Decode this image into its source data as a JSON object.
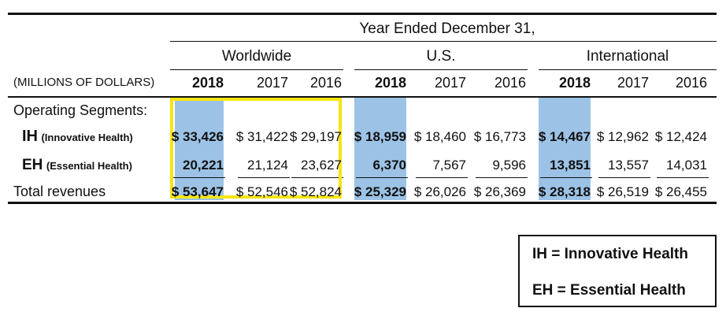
{
  "chart_data": {
    "type": "table",
    "title": "Year Ended December 31,",
    "units_label": "(MILLIONS OF DOLLARS)",
    "section_label": "Operating Segments:",
    "groups": [
      "Worldwide",
      "U.S.",
      "International"
    ],
    "years": [
      "2018",
      "2017",
      "2016"
    ],
    "rows": [
      {
        "abbr": "IH",
        "name": "(Innovative Health)",
        "display": [
          "$ 33,426",
          "$ 31,422",
          "$ 29,197",
          "$ 18,959",
          "$ 18,460",
          "$ 16,773",
          "$ 14,467",
          "$ 12,962",
          "$ 12,424"
        ],
        "values": [
          33426,
          31422,
          29197,
          18959,
          18460,
          16773,
          14467,
          12962,
          12424
        ]
      },
      {
        "abbr": "EH",
        "name": "(Essential Health)",
        "display": [
          "20,221",
          "21,124",
          "23,627",
          "6,370",
          "7,567",
          "9,596",
          "13,851",
          "13,557",
          "14,031"
        ],
        "values": [
          20221,
          21124,
          23627,
          6370,
          7567,
          9596,
          13851,
          13557,
          14031
        ]
      },
      {
        "label": "Total revenues",
        "display": [
          "$ 53,647",
          "$ 52,546",
          "$ 52,824",
          "$ 25,329",
          "$ 26,026",
          "$ 26,369",
          "$ 28,318",
          "$ 26,519",
          "$ 26,455"
        ],
        "values": [
          53647,
          52546,
          52824,
          25329,
          26026,
          26369,
          28318,
          26519,
          26455
        ]
      }
    ],
    "highlight_color": "#9cc3e6",
    "outline_color": "#f5e614"
  },
  "legend": {
    "line1": "IH  = Innovative Health",
    "line2": "EH = Essential Health"
  }
}
